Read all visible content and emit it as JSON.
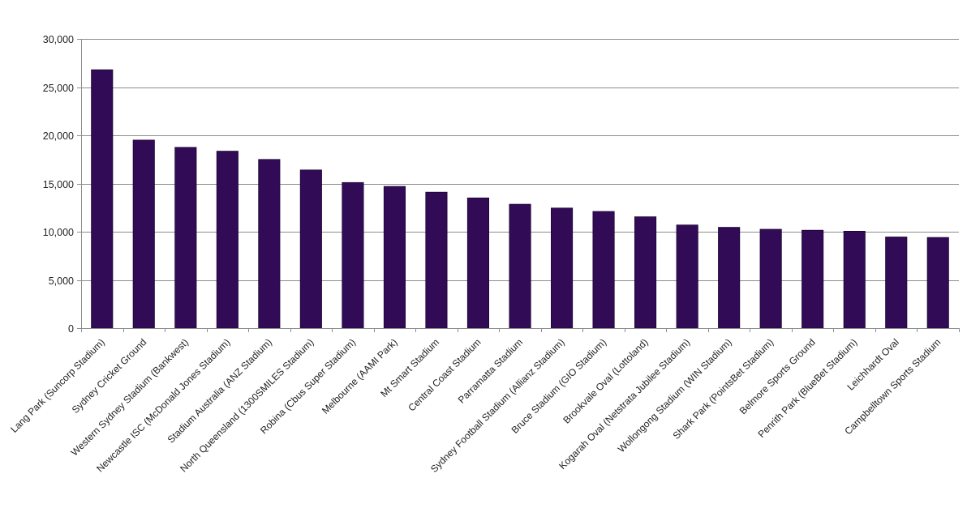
{
  "chart_data": {
    "type": "bar",
    "title": "",
    "xlabel": "",
    "ylabel": "",
    "ylim": [
      0,
      30000
    ],
    "yticks": [
      0,
      5000,
      10000,
      15000,
      20000,
      25000,
      30000
    ],
    "ytick_labels": [
      "0",
      "5,000",
      "10,000",
      "15,000",
      "20,000",
      "25,000",
      "30,000"
    ],
    "grid": true,
    "legend": null,
    "bar_color": "#320b57",
    "categories": [
      "Lang Park (Suncorp Stadium)",
      "Sydney Cricket Ground",
      "Western Sydney Stadium (Bankwest)",
      "Newcastle ISC (McDonald Jones Stadium)",
      "Stadium Australia (ANZ Stadium)",
      "North Queensland (1300SMILES Stadium)",
      "Robina (Cbus Super Stadium)",
      "Melbourne (AAMI Park)",
      "Mt Smart Stadium",
      "Central Coast Stadium",
      "Parramatta Stadium",
      "Sydney Football Stadium (Allianz Stadium)",
      "Bruce Stadium (GIO Stadium)",
      "Brookvale Oval (Lottoland)",
      "Kogarah Oval (Netstrata Jubilee Stadium)",
      "Wollongong Stadium (WIN Stadium)",
      "Shark Park (PointsBet Stadium)",
      "Belmore Sports Ground",
      "Penrith Park (BlueBet Stadium)",
      "Leichhardt Oval",
      "Campbelltown Sports Stadium"
    ],
    "values": [
      26800,
      19500,
      18750,
      18350,
      17500,
      16400,
      15100,
      14700,
      14100,
      13500,
      12850,
      12450,
      12100,
      11550,
      10700,
      10450,
      10250,
      10150,
      10050,
      9450,
      9400
    ]
  }
}
